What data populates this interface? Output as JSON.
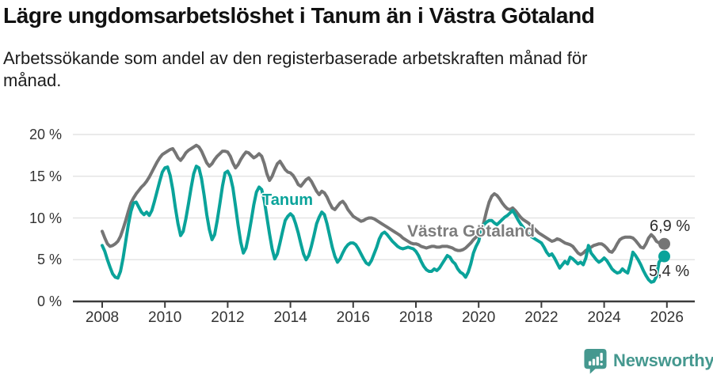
{
  "header": {
    "title": "Lägre ungdomsarbetslöshet i Tanum än i Västra Götaland",
    "subtitle": "Arbetssökande som andel av den registerbaserade arbetskraften månad för månad."
  },
  "chart_data": {
    "type": "line",
    "title": "Lägre ungdomsarbetslöshet i Tanum än i Västra Götaland",
    "frequency": "monthly",
    "x_start": "2008-01",
    "x_end": "2025-12",
    "grid": "horizontal",
    "legend_position": "inline-labels",
    "x_axis": {
      "ticks": [
        2008,
        2010,
        2012,
        2014,
        2016,
        2018,
        2020,
        2022,
        2024,
        2026
      ]
    },
    "y_axis": {
      "unit": "%",
      "ylim": [
        0,
        20
      ],
      "tick_values": [
        20,
        15,
        10,
        5,
        0
      ],
      "tick_labels": [
        "20 %",
        "15 %",
        "10 %",
        "5 %",
        "0 %"
      ]
    },
    "series": [
      {
        "name": "Västra Götaland",
        "color": "#757575",
        "end_label": "6,9 %",
        "last_value": 6.9,
        "values": [
          8.4,
          7.6,
          6.9,
          6.6,
          6.7,
          6.9,
          7.2,
          7.8,
          8.7,
          9.7,
          10.8,
          11.8,
          12.4,
          12.9,
          13.3,
          13.7,
          14.0,
          14.4,
          14.9,
          15.5,
          16.1,
          16.7,
          17.2,
          17.6,
          17.8,
          18.0,
          18.2,
          18.3,
          17.8,
          17.2,
          16.9,
          17.3,
          17.8,
          18.1,
          18.3,
          18.5,
          18.7,
          18.5,
          18.0,
          17.3,
          16.6,
          16.2,
          16.5,
          17.0,
          17.4,
          17.7,
          18.0,
          18.0,
          17.9,
          17.4,
          16.6,
          16.0,
          16.4,
          17.0,
          17.5,
          17.9,
          17.8,
          17.5,
          17.2,
          17.4,
          17.7,
          17.4,
          16.5,
          15.3,
          14.5,
          15.0,
          15.8,
          16.5,
          16.8,
          16.3,
          15.8,
          15.5,
          15.4,
          15.1,
          14.6,
          14.0,
          13.8,
          14.2,
          14.6,
          14.8,
          14.4,
          13.8,
          13.2,
          12.8,
          13.2,
          13.0,
          12.5,
          11.8,
          11.2,
          11.0,
          11.4,
          11.8,
          12.0,
          11.6,
          11.0,
          10.6,
          10.2,
          10.0,
          9.8,
          9.6,
          9.7,
          9.9,
          10.0,
          10.0,
          9.9,
          9.7,
          9.5,
          9.3,
          9.1,
          8.9,
          8.7,
          8.5,
          8.3,
          8.1,
          7.9,
          7.6,
          7.4,
          7.2,
          7.0,
          6.9,
          6.9,
          6.8,
          6.6,
          6.5,
          6.4,
          6.5,
          6.6,
          6.6,
          6.5,
          6.5,
          6.6,
          6.6,
          6.6,
          6.5,
          6.4,
          6.2,
          6.1,
          6.1,
          6.2,
          6.4,
          6.7,
          7.0,
          7.4,
          7.7,
          8.0,
          8.4,
          9.5,
          10.8,
          11.9,
          12.6,
          12.9,
          12.7,
          12.3,
          11.8,
          11.4,
          11.1,
          11.0,
          11.2,
          10.9,
          10.5,
          10.1,
          9.8,
          9.6,
          9.4,
          9.1,
          8.8,
          8.5,
          8.2,
          8.0,
          7.8,
          7.6,
          7.4,
          7.2,
          7.3,
          7.5,
          7.4,
          7.2,
          7.0,
          6.9,
          6.8,
          6.6,
          6.2,
          5.8,
          5.6,
          5.8,
          6.1,
          6.3,
          6.5,
          6.7,
          6.8,
          6.9,
          6.9,
          6.7,
          6.4,
          6.0,
          5.9,
          6.3,
          6.9,
          7.4,
          7.6,
          7.7,
          7.7,
          7.7,
          7.6,
          7.3,
          6.9,
          6.5,
          6.4,
          6.9,
          7.6,
          8.0,
          7.7,
          7.2,
          7.0,
          6.9,
          6.9
        ]
      },
      {
        "name": "Tanum",
        "color": "#0aa39a",
        "end_label": "5,4 %",
        "last_value": 5.4,
        "values": [
          6.7,
          6.0,
          5.0,
          4.1,
          3.3,
          2.9,
          2.8,
          3.6,
          5.2,
          7.2,
          9.2,
          10.8,
          11.8,
          11.9,
          11.3,
          10.7,
          10.4,
          10.7,
          10.3,
          10.9,
          12.0,
          13.2,
          14.4,
          15.5,
          16.0,
          16.1,
          15.1,
          13.4,
          11.2,
          9.3,
          7.9,
          8.4,
          9.9,
          11.7,
          13.6,
          15.3,
          16.2,
          16.0,
          14.7,
          12.7,
          10.4,
          8.6,
          7.4,
          8.0,
          9.7,
          11.7,
          13.8,
          15.4,
          15.6,
          15.0,
          13.6,
          11.4,
          9.1,
          7.1,
          5.8,
          6.4,
          7.9,
          9.7,
          11.6,
          13.1,
          13.7,
          13.4,
          12.1,
          10.1,
          8.1,
          6.3,
          5.1,
          5.7,
          7.0,
          8.4,
          9.7,
          10.2,
          10.5,
          10.2,
          9.3,
          8.2,
          6.9,
          5.7,
          5.0,
          5.5,
          6.6,
          7.9,
          9.3,
          10.1,
          10.7,
          10.4,
          9.3,
          7.9,
          6.5,
          5.4,
          4.7,
          5.1,
          5.8,
          6.4,
          6.8,
          7.0,
          7.0,
          6.8,
          6.3,
          5.7,
          5.1,
          4.6,
          4.4,
          4.9,
          5.7,
          6.5,
          7.5,
          8.1,
          8.3,
          8.0,
          7.6,
          7.2,
          6.9,
          6.6,
          6.4,
          6.3,
          6.4,
          6.5,
          6.4,
          6.3,
          6.0,
          5.5,
          4.8,
          4.2,
          3.8,
          3.6,
          3.6,
          3.9,
          3.7,
          4.0,
          4.5,
          5.0,
          5.5,
          5.3,
          4.8,
          4.5,
          3.9,
          3.5,
          3.3,
          2.9,
          3.5,
          4.5,
          5.8,
          6.6,
          7.2,
          8.5,
          9.2,
          9.5,
          9.7,
          9.7,
          9.4,
          9.2,
          9.5,
          9.8,
          10.1,
          10.3,
          10.6,
          10.9,
          10.4,
          9.8,
          9.3,
          8.9,
          8.5,
          8.1,
          7.8,
          7.6,
          7.4,
          7.2,
          7.0,
          6.5,
          5.9,
          5.5,
          5.7,
          5.2,
          4.6,
          4.0,
          4.4,
          4.8,
          4.5,
          5.3,
          5.1,
          4.8,
          4.5,
          4.7,
          4.4,
          5.2,
          6.7,
          5.8,
          5.4,
          5.0,
          4.7,
          4.9,
          5.2,
          4.9,
          4.4,
          3.9,
          3.6,
          3.4,
          3.5,
          3.9,
          3.6,
          3.4,
          4.5,
          5.9,
          5.5,
          5.0,
          4.4,
          3.7,
          3.1,
          2.6,
          2.3,
          2.4,
          3.0,
          4.7,
          5.1,
          5.4
        ]
      }
    ]
  },
  "colors": {
    "grid": "#e4e4e4",
    "axis": "#3c3c3c",
    "tick_text": "#333333",
    "title_text": "#111111"
  },
  "footer": {
    "brand": "Newsworthy",
    "brand_color": "#45988f",
    "logo_icon": "bar-chart-speech-bubble-icon"
  }
}
